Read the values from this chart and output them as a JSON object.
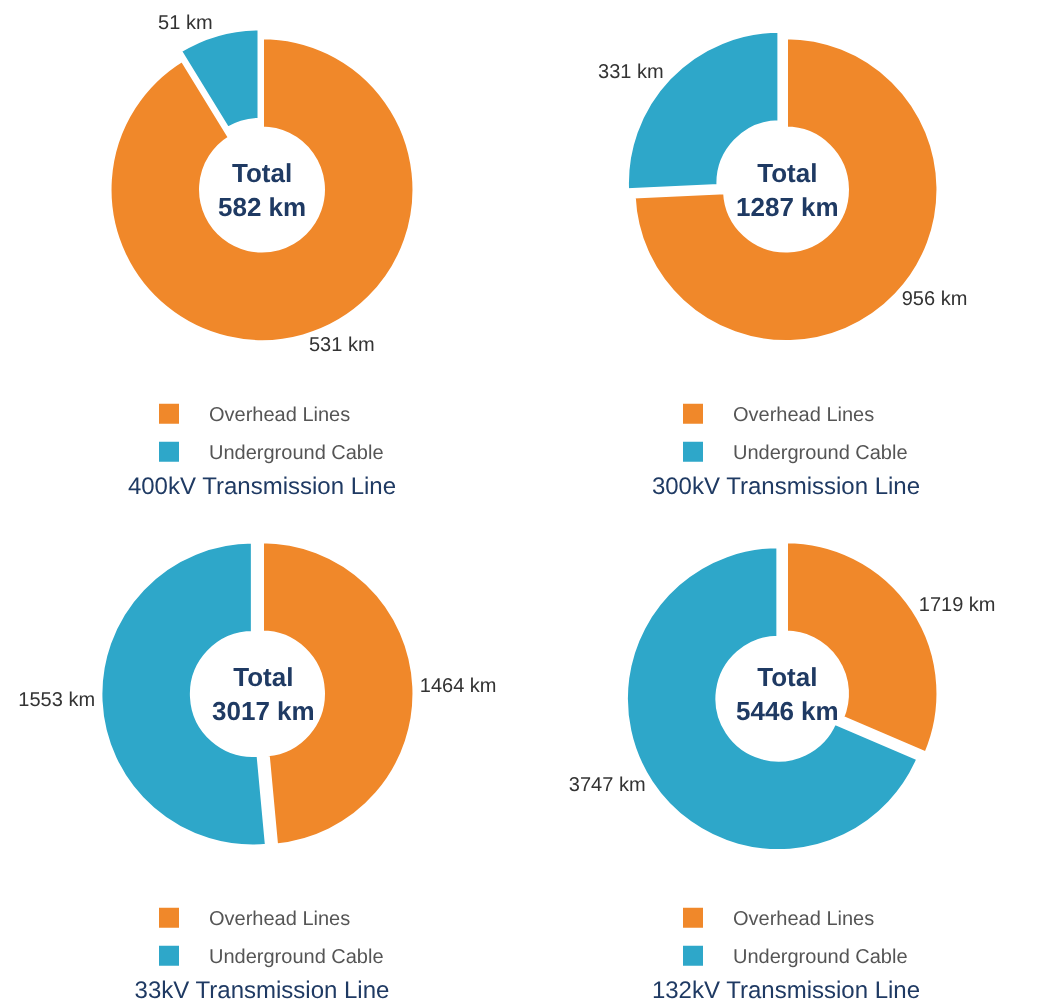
{
  "chart_data": [
    {
      "type": "donut",
      "title": "400kV Transmission Line",
      "categories": [
        "Overhead Lines",
        "Underground Cable"
      ],
      "values": [
        531,
        51
      ],
      "colors": [
        "#f0882a",
        "#2ea7c9"
      ],
      "value_labels": [
        "531 km",
        "51 km"
      ],
      "annotations": [
        "Total\n582 km"
      ],
      "legend": "bottom"
    },
    {
      "type": "donut",
      "title": "300kV Transmission Line",
      "categories": [
        "Overhead Lines",
        "Underground Cable"
      ],
      "values": [
        956,
        331
      ],
      "colors": [
        "#f0882a",
        "#2ea7c9"
      ],
      "value_labels": [
        "956 km",
        "331 km"
      ],
      "annotations": [
        "Total\n1287 km"
      ],
      "legend": "bottom"
    },
    {
      "type": "donut",
      "title": "33kV Transmission Line",
      "categories": [
        "Overhead Lines",
        "Underground Cable"
      ],
      "values": [
        1464,
        1553
      ],
      "colors": [
        "#f0882a",
        "#2ea7c9"
      ],
      "value_labels": [
        "1464 km",
        "1553 km"
      ],
      "annotations": [
        "Total\n3017 km"
      ],
      "legend": "bottom"
    },
    {
      "type": "donut",
      "title": "132kV Transmission Line",
      "categories": [
        "Overhead Lines",
        "Underground Cable"
      ],
      "values": [
        1719,
        3747
      ],
      "colors": [
        "#f0882a",
        "#2ea7c9"
      ],
      "value_labels": [
        "1719 km",
        "3747 km"
      ],
      "annotations": [
        "Total\n5446 km"
      ],
      "legend": "bottom"
    }
  ]
}
